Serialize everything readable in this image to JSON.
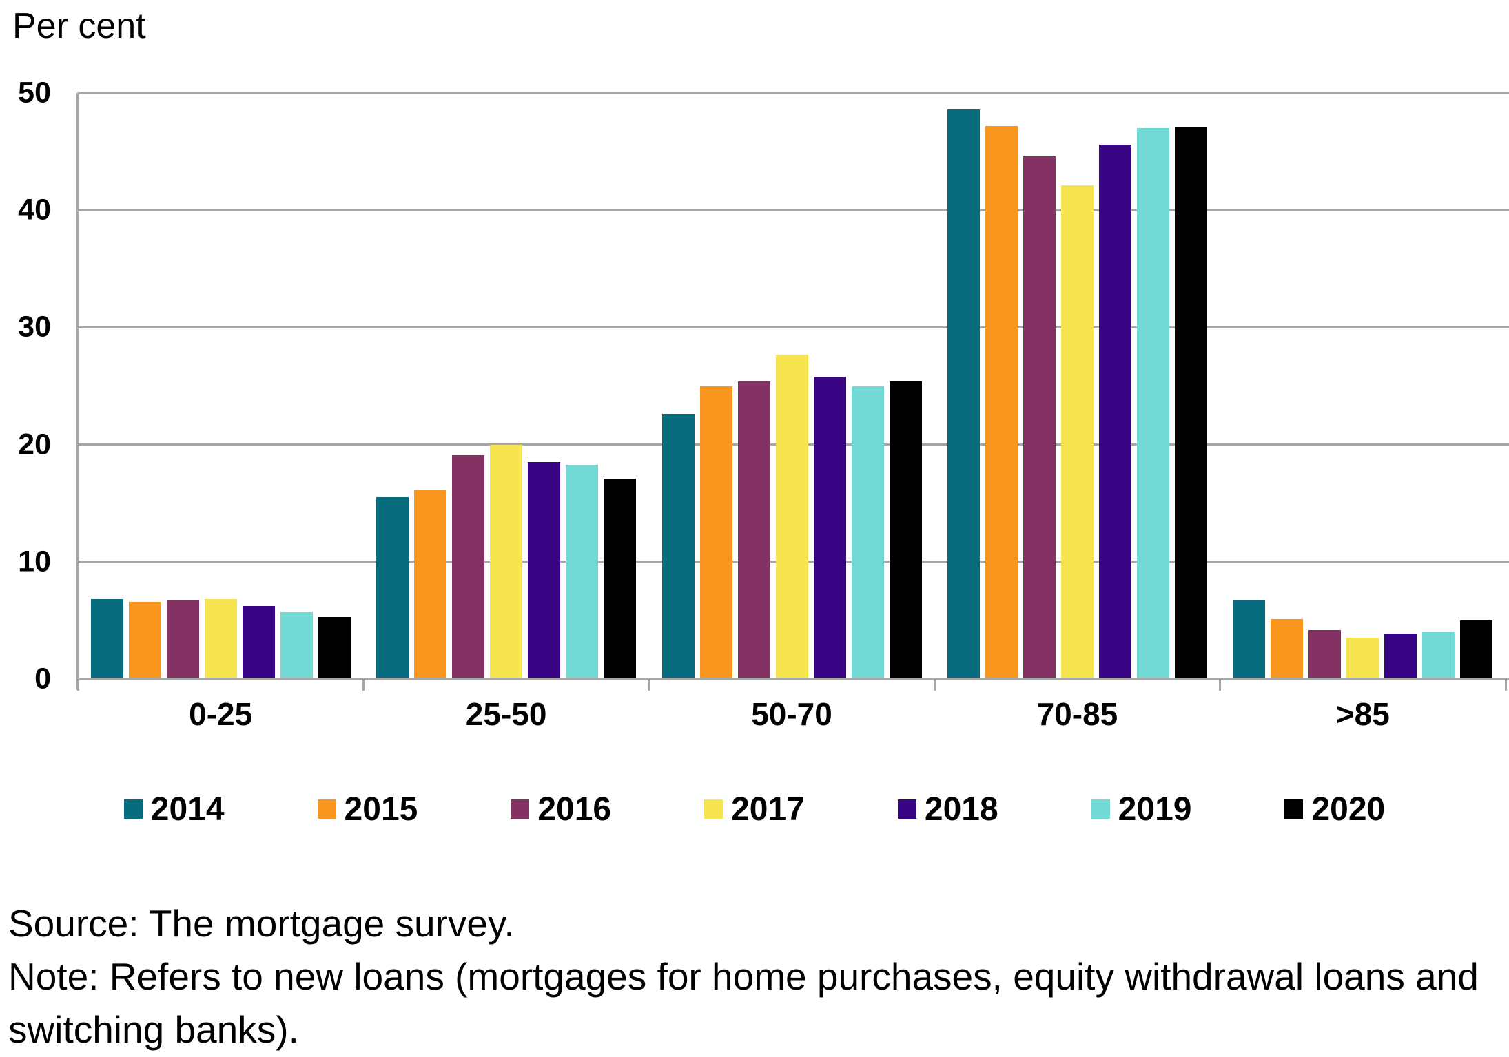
{
  "chart_data": {
    "type": "bar",
    "title": "",
    "ylabel": "Per cent",
    "xlabel": "",
    "ylim": [
      0,
      50
    ],
    "yticks": [
      0,
      10,
      20,
      30,
      40,
      50
    ],
    "grid": true,
    "legend_position": "bottom",
    "categories": [
      "0-25",
      "25-50",
      "50-70",
      "70-85",
      ">85"
    ],
    "series": [
      {
        "name": "2014",
        "color": "#076C7E",
        "values": [
          6.8,
          15.5,
          22.6,
          48.6,
          6.7
        ]
      },
      {
        "name": "2015",
        "color": "#F8951D",
        "values": [
          6.6,
          16.1,
          25.0,
          47.2,
          5.1
        ]
      },
      {
        "name": "2016",
        "color": "#833263",
        "values": [
          6.7,
          19.1,
          25.4,
          44.6,
          4.2
        ]
      },
      {
        "name": "2017",
        "color": "#F6E54F",
        "values": [
          6.8,
          20.0,
          27.7,
          42.1,
          3.5
        ]
      },
      {
        "name": "2018",
        "color": "#3A0584",
        "values": [
          6.2,
          18.5,
          25.8,
          45.6,
          3.9
        ]
      },
      {
        "name": "2019",
        "color": "#72D9D4",
        "values": [
          5.7,
          18.3,
          25.0,
          47.0,
          4.0
        ]
      },
      {
        "name": "2020",
        "color": "#000000",
        "values": [
          5.3,
          17.1,
          25.4,
          47.1,
          5.0
        ]
      }
    ],
    "axis_color": "#A6A6A6"
  },
  "footer": {
    "source": "Source: The mortgage survey.",
    "note": "Note: Refers to new loans (mortgages for home purchases, equity withdrawal loans and switching banks)."
  }
}
